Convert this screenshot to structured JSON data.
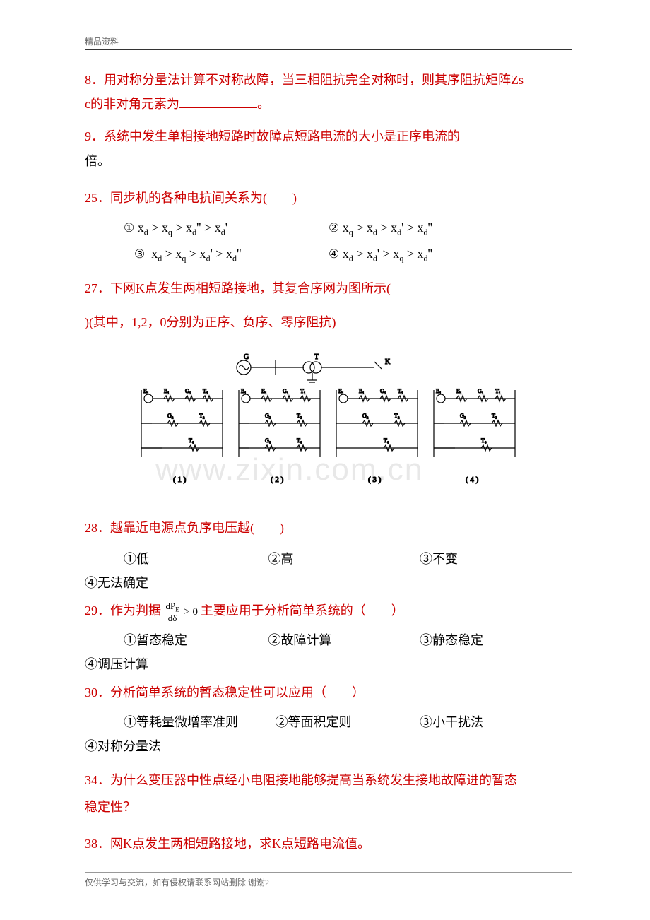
{
  "header": "精品资料",
  "q8": {
    "line1": "8．用对称分量法计算不对称故障，当三相阻抗完全对称时，则其序阻抗矩阵Zs",
    "line2_prefix": "c的非对角元素为",
    "line2_suffix": "。"
  },
  "q9": {
    "line1": "9．系统中发生单相接地短路时故障点短路电流的大小是正序电流的",
    "line2": "倍。"
  },
  "q25": {
    "text": "25．同步机的各种电抗间关系为(　　)",
    "opt1_label": "①",
    "opt1_math": "x<sub>d</sub> > x<sub>q</sub> > x<sub>d</sub>'' > x<sub>d</sub>'",
    "opt2_label": "②",
    "opt2_math": "x<sub>q</sub> > x<sub>d</sub> > x<sub>d</sub>' > x<sub>d</sub>''",
    "opt3_label": "③",
    "opt3_math": "x<sub>d</sub> > x<sub>q</sub> > x<sub>d</sub>' > x<sub>d</sub>''",
    "opt4_label": "④",
    "opt4_math": "x<sub>d</sub> > x<sub>d</sub>' > x<sub>q</sub> > x<sub>d</sub>''"
  },
  "q27": {
    "line1": "27．下网K点发生两相短路接地，其复合序网为图所示(",
    "line2": ")(其中，1,2，0分别为正序、负序、零序阻抗)"
  },
  "watermark": "www.zixin.com.cn",
  "diagram": {
    "top": {
      "gen_label": "G",
      "xfmr_label": "T",
      "k_label": "K"
    },
    "panels": [
      {
        "idx": "( 1 )",
        "rows": [
          "E₁  G₁  T₁",
          "G₂  T₂",
          "T₀"
        ]
      },
      {
        "idx": "( 2 )",
        "rows": [
          "E₁  G₁  T₁",
          "G₂  T₂",
          "G₀  T₀"
        ]
      },
      {
        "idx": "( 3 )",
        "rows": [
          "E₁  G₁  T₁",
          "G₂  T₂",
          "T₀"
        ]
      },
      {
        "idx": "( 4 )",
        "rows": [
          "E₁  G₁  T₁",
          "G₂  T₂",
          "T₀"
        ]
      }
    ]
  },
  "q28": {
    "text": "28．越靠近电源点负序电压越(　　)",
    "opts": [
      "①低",
      "②高",
      "③不变",
      "④无法确定"
    ]
  },
  "q29": {
    "prefix": "29．作为判据",
    "frac_num": "dP",
    "frac_num_sub": "E",
    "frac_den": "dδ",
    "mid": " > 0 ",
    "suffix": "主要应用于分析简单系统的（　　）",
    "opts": [
      "①暂态稳定",
      "②故障计算",
      "③静态稳定",
      "④调压计算"
    ]
  },
  "q30": {
    "text": "30．分析简单系统的暂态稳定性可以应用（　　）",
    "opts": [
      "①等耗量微增率准则",
      "②等面积定则",
      "③小干扰法",
      "④对称分量法"
    ]
  },
  "q34": {
    "line1": "34．为什么变压器中性点经小电阻接地能够提高当系统发生接地故障进的暂态",
    "line2": "稳定性？"
  },
  "q38": {
    "text": "38．网K点发生两相短路接地，求K点短路电流值。"
  },
  "footer": {
    "text": "仅供学习与交流，如有侵权请联系网站删除 谢谢",
    "page": "2"
  },
  "colors": {
    "red": "#cc0000",
    "black": "#000000",
    "gray": "#666666"
  }
}
